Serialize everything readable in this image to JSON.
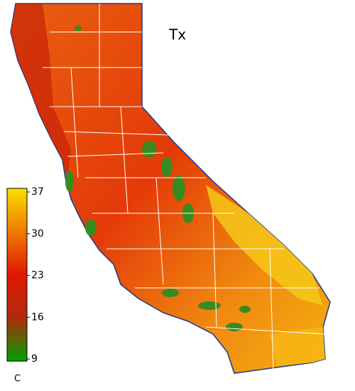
{
  "map": {
    "title": "Tx",
    "colorbar": {
      "label": "C",
      "lim": [
        9,
        37
      ],
      "ticks": [
        9,
        16,
        23,
        30,
        37
      ],
      "colors": [
        "#00a000",
        "#b02a10",
        "#e01800",
        "#f07a00",
        "#f8e000"
      ]
    }
  }
}
